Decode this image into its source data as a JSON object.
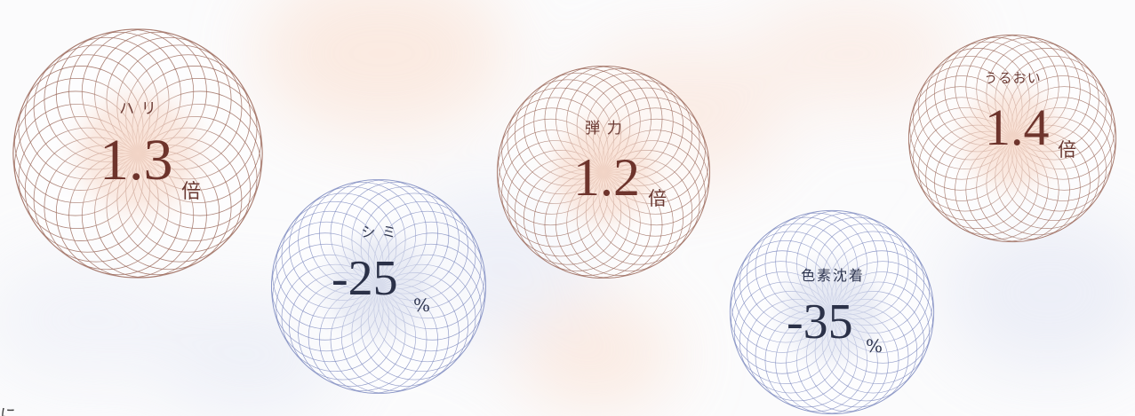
{
  "colors": {
    "warm_stroke": "#9c6b5d",
    "warm_glow": "#f8dcce",
    "cool_stroke": "#7f8bc0",
    "cool_glow": "#dfe3f0"
  },
  "metrics": [
    {
      "label": "ハリ",
      "value": "1.3",
      "unit": "倍",
      "tone": "warm"
    },
    {
      "label": "シミ",
      "value": "-25",
      "unit": "%",
      "tone": "cool"
    },
    {
      "label": "弾力",
      "value": "1.2",
      "unit": "倍",
      "tone": "warm"
    },
    {
      "label": "色素沈着",
      "value": "-35",
      "unit": "%",
      "tone": "cool"
    },
    {
      "label": "うるおい",
      "value": "1.4",
      "unit": "倍",
      "tone": "warm"
    }
  ],
  "footer": {
    "text": "に"
  }
}
